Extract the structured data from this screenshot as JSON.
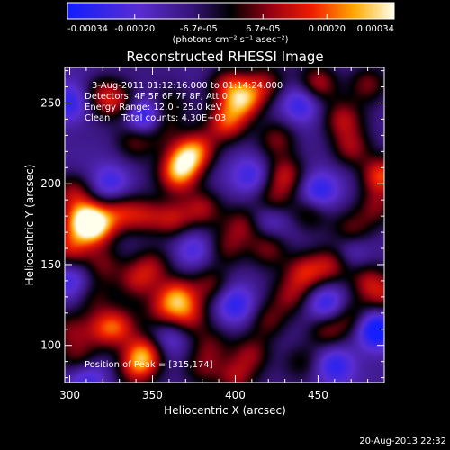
{
  "chart_data": {
    "type": "heatmap",
    "title": "Reconstructed RHESSI Image",
    "xlabel": "Heliocentric X (arcsec)",
    "ylabel": "Heliocentric Y (arcsec)",
    "xlim": [
      297,
      490
    ],
    "ylim": [
      77,
      272
    ],
    "xticks": [
      300,
      350,
      400,
      450
    ],
    "yticks": [
      100,
      150,
      200,
      250
    ],
    "colorbar": {
      "range": [
        -0.00034,
        0.00034
      ],
      "tick_values": [
        -0.00034,
        -0.0002,
        -6.7e-05,
        6.7e-05,
        0.0002,
        0.00034
      ],
      "tick_labels": [
        "-0.00034",
        "-0.00020",
        "-6.7e-05",
        "6.7e-05",
        "0.00020",
        "0.00034"
      ],
      "units": "(photons cm⁻² s⁻¹ asec⁻²)"
    },
    "annotations": [
      "3-Aug-2011 01:12:16.000 to 01:14:24.000",
      "Detectors: 4F 5F 6F 7F 8F, Att 0",
      "Energy Range: 12.0 - 25.0 keV",
      "Clean    Total counts: 4.30E+03"
    ],
    "peak_label": "Position of Peak = [315,174]",
    "peak": [
      315,
      174
    ],
    "blobs": [
      {
        "x": 315,
        "y": 174,
        "v": 1.0
      },
      {
        "x": 308,
        "y": 178,
        "v": 0.85
      },
      {
        "x": 300,
        "y": 160,
        "v": 0.65
      },
      {
        "x": 302,
        "y": 195,
        "v": 0.55
      },
      {
        "x": 330,
        "y": 182,
        "v": 0.6
      },
      {
        "x": 345,
        "y": 180,
        "v": 0.55
      },
      {
        "x": 362,
        "y": 178,
        "v": 0.6
      },
      {
        "x": 380,
        "y": 185,
        "v": 0.55
      },
      {
        "x": 365,
        "y": 205,
        "v": 0.75
      },
      {
        "x": 370,
        "y": 215,
        "v": 0.85
      },
      {
        "x": 378,
        "y": 222,
        "v": 0.6
      },
      {
        "x": 395,
        "y": 238,
        "v": 0.75
      },
      {
        "x": 405,
        "y": 252,
        "v": 0.95
      },
      {
        "x": 395,
        "y": 262,
        "v": 0.55
      },
      {
        "x": 418,
        "y": 262,
        "v": 0.5
      },
      {
        "x": 450,
        "y": 262,
        "v": 0.65
      },
      {
        "x": 480,
        "y": 262,
        "v": 0.5
      },
      {
        "x": 465,
        "y": 240,
        "v": 0.55
      },
      {
        "x": 470,
        "y": 222,
        "v": 0.55
      },
      {
        "x": 488,
        "y": 205,
        "v": 0.85
      },
      {
        "x": 425,
        "y": 228,
        "v": 0.5
      },
      {
        "x": 430,
        "y": 205,
        "v": 0.6
      },
      {
        "x": 422,
        "y": 188,
        "v": 0.6
      },
      {
        "x": 405,
        "y": 175,
        "v": 0.5
      },
      {
        "x": 445,
        "y": 182,
        "v": 0.45
      },
      {
        "x": 470,
        "y": 170,
        "v": 0.5
      },
      {
        "x": 485,
        "y": 185,
        "v": 0.45
      },
      {
        "x": 420,
        "y": 160,
        "v": 0.5
      },
      {
        "x": 458,
        "y": 150,
        "v": 0.6
      },
      {
        "x": 442,
        "y": 145,
        "v": 0.65
      },
      {
        "x": 433,
        "y": 130,
        "v": 0.45
      },
      {
        "x": 420,
        "y": 115,
        "v": 0.45
      },
      {
        "x": 455,
        "y": 110,
        "v": 0.5
      },
      {
        "x": 470,
        "y": 118,
        "v": 0.45
      },
      {
        "x": 410,
        "y": 95,
        "v": 0.5
      },
      {
        "x": 400,
        "y": 80,
        "v": 0.55
      },
      {
        "x": 380,
        "y": 85,
        "v": 0.4
      },
      {
        "x": 365,
        "y": 130,
        "v": 0.85
      },
      {
        "x": 372,
        "y": 118,
        "v": 0.55
      },
      {
        "x": 355,
        "y": 120,
        "v": 0.45
      },
      {
        "x": 385,
        "y": 138,
        "v": 0.5
      },
      {
        "x": 350,
        "y": 150,
        "v": 0.45
      },
      {
        "x": 340,
        "y": 140,
        "v": 0.5
      },
      {
        "x": 320,
        "y": 150,
        "v": 0.45
      },
      {
        "x": 330,
        "y": 112,
        "v": 0.6
      },
      {
        "x": 320,
        "y": 110,
        "v": 0.5
      },
      {
        "x": 345,
        "y": 95,
        "v": 0.9
      },
      {
        "x": 340,
        "y": 85,
        "v": 0.55
      },
      {
        "x": 305,
        "y": 92,
        "v": 0.45
      },
      {
        "x": 300,
        "y": 110,
        "v": 0.4
      },
      {
        "x": 315,
        "y": 130,
        "v": 0.35
      },
      {
        "x": 340,
        "y": 228,
        "v": 0.55
      },
      {
        "x": 355,
        "y": 235,
        "v": 0.45
      },
      {
        "x": 320,
        "y": 255,
        "v": 0.5
      },
      {
        "x": 330,
        "y": 250,
        "v": 0.45
      },
      {
        "x": 360,
        "y": 250,
        "v": 0.35
      },
      {
        "x": 480,
        "y": 140,
        "v": 0.55
      },
      {
        "x": 490,
        "y": 130,
        "v": 0.5
      },
      {
        "x": 395,
        "y": 160,
        "v": 0.4
      },
      {
        "x": 440,
        "y": 90,
        "v": 0.35
      },
      {
        "x": 385,
        "y": 100,
        "v": 0.35
      },
      {
        "x": 345,
        "y": 240,
        "v": -0.8
      },
      {
        "x": 450,
        "y": 195,
        "v": -0.6
      },
      {
        "x": 455,
        "y": 125,
        "v": -0.6
      },
      {
        "x": 485,
        "y": 110,
        "v": -0.9
      },
      {
        "x": 300,
        "y": 250,
        "v": -0.55
      },
      {
        "x": 420,
        "y": 180,
        "v": -0.5
      },
      {
        "x": 400,
        "y": 125,
        "v": -0.55
      },
      {
        "x": 310,
        "y": 80,
        "v": -0.45
      },
      {
        "x": 440,
        "y": 250,
        "v": -0.5
      },
      {
        "x": 325,
        "y": 200,
        "v": -0.45
      },
      {
        "x": 460,
        "y": 88,
        "v": -0.55
      },
      {
        "x": 375,
        "y": 160,
        "v": -0.4
      },
      {
        "x": 410,
        "y": 205,
        "v": -0.45
      },
      {
        "x": 300,
        "y": 140,
        "v": -0.4
      },
      {
        "x": 360,
        "y": 105,
        "v": -0.35
      },
      {
        "x": 470,
        "y": 160,
        "v": -0.4
      }
    ]
  },
  "footer": {
    "timestamp": "20-Aug-2013 22:32"
  }
}
